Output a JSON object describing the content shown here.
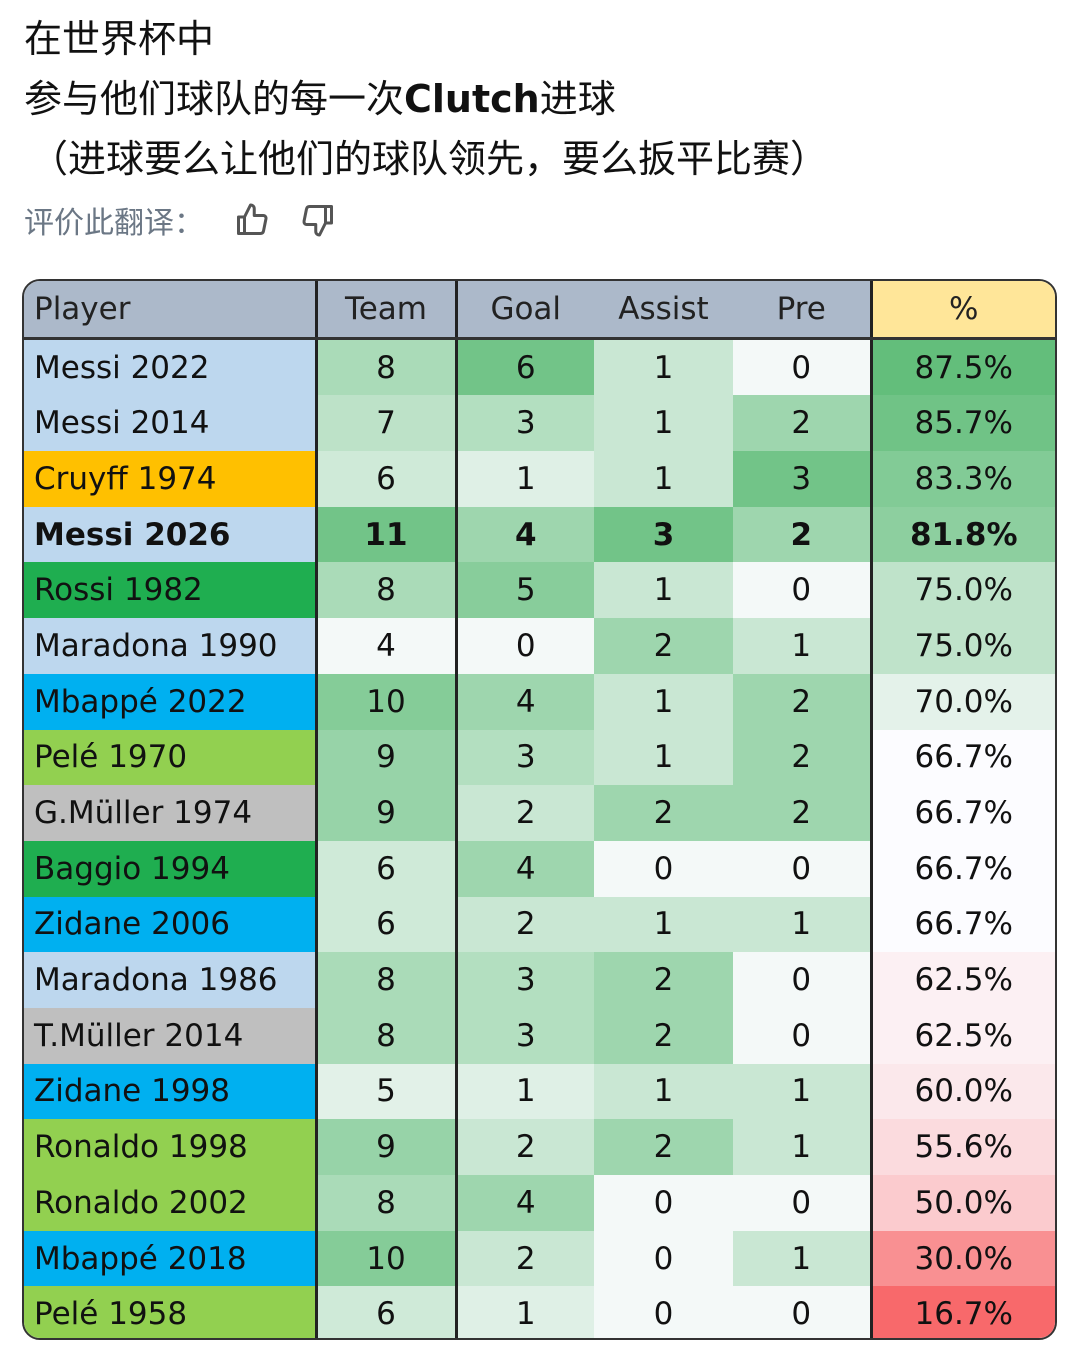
{
  "header": {
    "line1": "在世界杯中",
    "line2": [
      "参与他们球队的每一次",
      "Clutch",
      "进球"
    ],
    "line3": "（进球要么让他们的球队领先，要么扳平比赛）"
  },
  "rating": {
    "label": "评价此翻译："
  },
  "table": {
    "columns": [
      "Player",
      "Team",
      "Goal",
      "Assist",
      "Pre",
      "%"
    ],
    "header_color": "#acb9ca",
    "pct_header_color": "#ffe699",
    "rows": [
      {
        "player": "Messi 2022",
        "color": "#bdd7ee",
        "cells": [
          8,
          6,
          1,
          0
        ],
        "pct": "87.5%"
      },
      {
        "player": "Messi 2014",
        "color": "#bdd7ee",
        "cells": [
          7,
          3,
          1,
          2
        ],
        "pct": "85.7%"
      },
      {
        "player": "Cruyff 1974",
        "color": "#ffc000",
        "cells": [
          6,
          1,
          1,
          3
        ],
        "pct": "83.3%"
      },
      {
        "player": "Messi 2026",
        "color": "#bdd7ee",
        "cells": [
          11,
          4,
          3,
          2
        ],
        "pct": "81.8%",
        "bold": true
      },
      {
        "player": "Rossi 1982",
        "color": "#1fae50",
        "cells": [
          8,
          5,
          1,
          0
        ],
        "pct": "75.0%"
      },
      {
        "player": "Maradona 1990",
        "color": "#bdd7ee",
        "cells": [
          4,
          0,
          2,
          1
        ],
        "pct": "75.0%"
      },
      {
        "player": "Mbappé 2022",
        "color": "#00b0f0",
        "cells": [
          10,
          4,
          1,
          2
        ],
        "pct": "70.0%"
      },
      {
        "player": "Pelé 1970",
        "color": "#92d050",
        "cells": [
          9,
          3,
          1,
          2
        ],
        "pct": "66.7%"
      },
      {
        "player": "G.Müller 1974",
        "color": "#bfbfbf",
        "cells": [
          9,
          2,
          2,
          2
        ],
        "pct": "66.7%"
      },
      {
        "player": "Baggio 1994",
        "color": "#1fae50",
        "cells": [
          6,
          4,
          0,
          0
        ],
        "pct": "66.7%"
      },
      {
        "player": "Zidane 2006",
        "color": "#00b0f0",
        "cells": [
          6,
          2,
          1,
          1
        ],
        "pct": "66.7%"
      },
      {
        "player": "Maradona 1986",
        "color": "#bdd7ee",
        "cells": [
          8,
          3,
          2,
          0
        ],
        "pct": "62.5%"
      },
      {
        "player": "T.Müller 2014",
        "color": "#bfbfbf",
        "cells": [
          8,
          3,
          2,
          0
        ],
        "pct": "62.5%"
      },
      {
        "player": "Zidane 1998",
        "color": "#00b0f0",
        "cells": [
          5,
          1,
          1,
          1
        ],
        "pct": "60.0%"
      },
      {
        "player": "Ronaldo 1998",
        "color": "#92d050",
        "cells": [
          9,
          2,
          2,
          1
        ],
        "pct": "55.6%"
      },
      {
        "player": "Ronaldo 2002",
        "color": "#92d050",
        "cells": [
          8,
          4,
          0,
          0
        ],
        "pct": "50.0%"
      },
      {
        "player": "Mbappé 2018",
        "color": "#00b0f0",
        "cells": [
          10,
          2,
          0,
          1
        ],
        "pct": "30.0%"
      },
      {
        "player": "Pelé 1958",
        "color": "#92d050",
        "cells": [
          6,
          1,
          0,
          0
        ],
        "pct": "16.7%"
      }
    ]
  }
}
